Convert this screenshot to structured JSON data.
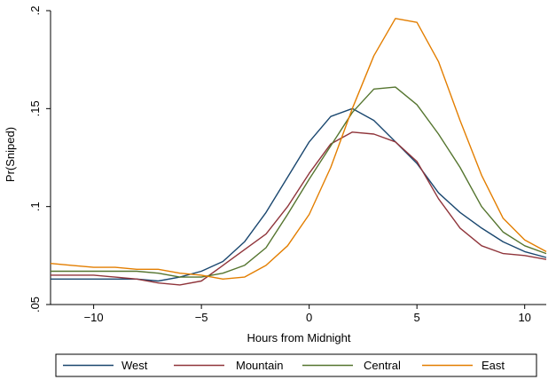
{
  "chart_data": {
    "type": "line",
    "title": "",
    "xlabel": "Hours from Midnight",
    "ylabel": "Pr(Sniped)",
    "xlim": [
      -12,
      11
    ],
    "ylim": [
      0.05,
      0.2
    ],
    "xticks": [
      -10,
      -5,
      0,
      5,
      10
    ],
    "xtick_labels": [
      "−10",
      "−5",
      "0",
      "5",
      "10"
    ],
    "yticks": [
      0.05,
      0.1,
      0.15,
      0.2
    ],
    "ytick_labels": [
      ".05",
      ".1",
      ".15",
      ".2"
    ],
    "grid": false,
    "legend_position": "bottom",
    "x": [
      -12,
      -11,
      -10,
      -9,
      -8,
      -7,
      -6,
      -5,
      -4,
      -3,
      -2,
      -1,
      0,
      1,
      2,
      3,
      4,
      5,
      6,
      7,
      8,
      9,
      10,
      11
    ],
    "series": [
      {
        "name": "West",
        "color": "#1a476f",
        "values": [
          0.063,
          0.063,
          0.063,
          0.063,
          0.063,
          0.062,
          0.064,
          0.067,
          0.072,
          0.082,
          0.097,
          0.115,
          0.133,
          0.146,
          0.15,
          0.144,
          0.133,
          0.122,
          0.107,
          0.097,
          0.089,
          0.082,
          0.077,
          0.074
        ]
      },
      {
        "name": "Mountain",
        "color": "#90353b",
        "values": [
          0.065,
          0.065,
          0.065,
          0.064,
          0.063,
          0.061,
          0.06,
          0.062,
          0.07,
          0.078,
          0.086,
          0.1,
          0.117,
          0.132,
          0.138,
          0.137,
          0.133,
          0.123,
          0.104,
          0.089,
          0.08,
          0.076,
          0.075,
          0.073
        ]
      },
      {
        "name": "Central",
        "color": "#55752f",
        "values": [
          0.067,
          0.067,
          0.067,
          0.067,
          0.067,
          0.066,
          0.064,
          0.064,
          0.066,
          0.07,
          0.079,
          0.096,
          0.114,
          0.131,
          0.148,
          0.16,
          0.161,
          0.152,
          0.137,
          0.12,
          0.1,
          0.087,
          0.08,
          0.076
        ]
      },
      {
        "name": "East",
        "color": "#e37e00",
        "values": [
          0.071,
          0.07,
          0.069,
          0.069,
          0.068,
          0.068,
          0.066,
          0.065,
          0.063,
          0.064,
          0.07,
          0.08,
          0.096,
          0.12,
          0.15,
          0.177,
          0.196,
          0.194,
          0.174,
          0.144,
          0.116,
          0.094,
          0.083,
          0.077
        ]
      }
    ]
  }
}
